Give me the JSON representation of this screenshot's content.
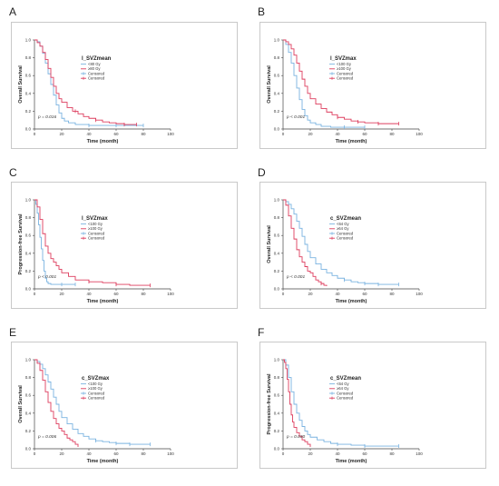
{
  "figure": {
    "panel_letters": [
      "A",
      "B",
      "C",
      "D",
      "E",
      "F"
    ]
  },
  "colors": {
    "blue": "#7ab3e0",
    "red": "#dd3d5e",
    "frame": "#c9c9c9",
    "axis": "#444444"
  },
  "chart_data": [
    {
      "type": "line",
      "panel": "A",
      "title": "l_SVZmean",
      "xlabel": "Time (month)",
      "ylabel": "Overall Survival",
      "xticks": [
        "0",
        "20",
        "40",
        "60",
        "80",
        "100"
      ],
      "yticks": [
        "0.0",
        "0.2",
        "0.4",
        "0.6",
        "0.8",
        "1.0"
      ],
      "xlim": [
        0,
        100
      ],
      "ylim": [
        0,
        1
      ],
      "legend": [
        "<80 Gy",
        "≥80 Gy",
        "Censored",
        "Censored"
      ],
      "legend_position": "center",
      "annotation": "p = 0.016",
      "series": [
        {
          "name": "<80 Gy",
          "color": "#7ab3e0",
          "x": [
            0,
            2,
            4,
            6,
            8,
            10,
            12,
            14,
            16,
            18,
            20,
            22,
            25,
            30,
            40,
            50,
            60,
            70,
            80
          ],
          "y": [
            1.0,
            0.98,
            0.93,
            0.85,
            0.74,
            0.62,
            0.5,
            0.38,
            0.27,
            0.18,
            0.12,
            0.09,
            0.07,
            0.05,
            0.04,
            0.04,
            0.04,
            0.04,
            0.04
          ],
          "censor_x": [
            40,
            60,
            80
          ]
        },
        {
          "name": "≥80 Gy",
          "color": "#dd3d5e",
          "x": [
            0,
            2,
            4,
            6,
            8,
            10,
            12,
            14,
            16,
            18,
            20,
            24,
            28,
            32,
            36,
            40,
            45,
            50,
            55,
            60,
            66,
            75
          ],
          "y": [
            1.0,
            0.97,
            0.93,
            0.86,
            0.78,
            0.68,
            0.58,
            0.48,
            0.4,
            0.34,
            0.3,
            0.24,
            0.2,
            0.17,
            0.14,
            0.12,
            0.1,
            0.08,
            0.07,
            0.06,
            0.05,
            0.05
          ],
          "censor_x": [
            30,
            45,
            66,
            75
          ]
        }
      ]
    },
    {
      "type": "line",
      "panel": "B",
      "title": "l_SVZmax",
      "xlabel": "Time (month)",
      "ylabel": "Overall Survival",
      "xticks": [
        "0",
        "20",
        "40",
        "60",
        "80",
        "100"
      ],
      "yticks": [
        "0.0",
        "0.2",
        "0.4",
        "0.6",
        "0.8",
        "1.0"
      ],
      "xlim": [
        0,
        100
      ],
      "ylim": [
        0,
        1
      ],
      "legend": [
        "<100 Gy",
        "≥100 Gy",
        "Censored",
        "Censored"
      ],
      "legend_position": "center",
      "annotation": "p < 0.001",
      "series": [
        {
          "name": "<100 Gy",
          "color": "#7ab3e0",
          "x": [
            0,
            2,
            4,
            6,
            8,
            10,
            12,
            14,
            16,
            18,
            20,
            24,
            28,
            35,
            45,
            60
          ],
          "y": [
            1.0,
            0.95,
            0.86,
            0.74,
            0.6,
            0.46,
            0.33,
            0.22,
            0.15,
            0.1,
            0.07,
            0.05,
            0.03,
            0.02,
            0.02,
            0.02
          ],
          "censor_x": [
            45,
            60
          ]
        },
        {
          "name": "≥100 Gy",
          "color": "#dd3d5e",
          "x": [
            0,
            2,
            4,
            6,
            8,
            10,
            12,
            14,
            16,
            18,
            20,
            24,
            28,
            32,
            36,
            40,
            45,
            50,
            55,
            60,
            70,
            85
          ],
          "y": [
            1.0,
            0.98,
            0.95,
            0.9,
            0.83,
            0.74,
            0.65,
            0.56,
            0.48,
            0.4,
            0.34,
            0.28,
            0.23,
            0.19,
            0.16,
            0.13,
            0.11,
            0.09,
            0.08,
            0.07,
            0.06,
            0.06
          ],
          "censor_x": [
            40,
            55,
            70,
            85
          ]
        }
      ]
    },
    {
      "type": "line",
      "panel": "C",
      "title": "l_SVZmax",
      "xlabel": "Time (month)",
      "ylabel": "Progression-free Survival",
      "xticks": [
        "0",
        "20",
        "40",
        "60",
        "80",
        "100"
      ],
      "yticks": [
        "0.0",
        "0.2",
        "0.4",
        "0.6",
        "0.8",
        "1.0"
      ],
      "xlim": [
        0,
        100
      ],
      "ylim": [
        0,
        1
      ],
      "legend": [
        "<100 Gy",
        "≥100 Gy",
        "Censored",
        "Censored"
      ],
      "legend_position": "center",
      "annotation": "p < 0.001",
      "series": [
        {
          "name": "<100 Gy",
          "color": "#7ab3e0",
          "x": [
            0,
            1,
            2,
            3,
            4,
            5,
            6,
            7,
            8,
            9,
            10,
            12,
            15,
            20,
            30
          ],
          "y": [
            1.0,
            0.95,
            0.85,
            0.72,
            0.58,
            0.45,
            0.32,
            0.2,
            0.12,
            0.08,
            0.06,
            0.05,
            0.05,
            0.05,
            0.05
          ],
          "censor_x": [
            20,
            30
          ]
        },
        {
          "name": "≥100 Gy",
          "color": "#dd3d5e",
          "x": [
            0,
            2,
            4,
            6,
            8,
            10,
            12,
            14,
            16,
            18,
            20,
            25,
            30,
            40,
            50,
            60,
            70,
            85
          ],
          "y": [
            1.0,
            0.92,
            0.78,
            0.62,
            0.48,
            0.4,
            0.34,
            0.3,
            0.26,
            0.22,
            0.18,
            0.14,
            0.1,
            0.08,
            0.07,
            0.05,
            0.04,
            0.04
          ],
          "censor_x": [
            40,
            60,
            85
          ]
        }
      ]
    },
    {
      "type": "line",
      "panel": "D",
      "title": "c_SVZmean",
      "xlabel": "Time (month)",
      "ylabel": "Overall Survival",
      "xticks": [
        "0",
        "20",
        "40",
        "60",
        "80",
        "100"
      ],
      "yticks": [
        "0.0",
        "0.2",
        "0.4",
        "0.6",
        "0.8",
        "1.0"
      ],
      "xlim": [
        0,
        100
      ],
      "ylim": [
        0,
        1
      ],
      "legend": [
        "<64 Gy",
        "≥64 Gy",
        "Censored",
        "Censored"
      ],
      "legend_position": "center",
      "annotation": "p < 0.001",
      "series": [
        {
          "name": "<64 Gy",
          "color": "#7ab3e0",
          "x": [
            0,
            2,
            4,
            6,
            8,
            10,
            12,
            14,
            16,
            18,
            20,
            24,
            28,
            32,
            36,
            40,
            45,
            50,
            55,
            60,
            70,
            85
          ],
          "y": [
            1.0,
            0.98,
            0.95,
            0.9,
            0.84,
            0.76,
            0.68,
            0.59,
            0.5,
            0.42,
            0.35,
            0.28,
            0.22,
            0.18,
            0.15,
            0.12,
            0.1,
            0.08,
            0.07,
            0.06,
            0.05,
            0.05
          ],
          "censor_x": [
            45,
            60,
            70,
            85
          ]
        },
        {
          "name": "≥64 Gy",
          "color": "#dd3d5e",
          "x": [
            0,
            2,
            4,
            6,
            8,
            10,
            12,
            14,
            16,
            18,
            20,
            22,
            24,
            26,
            28,
            30,
            32
          ],
          "y": [
            1.0,
            0.94,
            0.82,
            0.68,
            0.56,
            0.44,
            0.36,
            0.3,
            0.25,
            0.2,
            0.18,
            0.14,
            0.1,
            0.08,
            0.06,
            0.04,
            0.03
          ],
          "censor_x": [
            28
          ]
        }
      ]
    },
    {
      "type": "line",
      "panel": "E",
      "title": "c_SVZmax",
      "xlabel": "Time (month)",
      "ylabel": "Overall Survival",
      "xticks": [
        "0",
        "20",
        "40",
        "60",
        "80",
        "100"
      ],
      "yticks": [
        "0.0",
        "0.2",
        "0.4",
        "0.6",
        "0.8",
        "1.0"
      ],
      "xlim": [
        0,
        100
      ],
      "ylim": [
        0,
        1
      ],
      "legend": [
        "<100 Gy",
        "≥100 Gy",
        "Censored",
        "Censored"
      ],
      "legend_position": "center",
      "annotation": "p = 0.006",
      "series": [
        {
          "name": "<100 Gy",
          "color": "#7ab3e0",
          "x": [
            0,
            2,
            4,
            6,
            8,
            10,
            12,
            14,
            16,
            18,
            20,
            24,
            28,
            32,
            36,
            40,
            45,
            50,
            55,
            60,
            70,
            85
          ],
          "y": [
            1.0,
            0.98,
            0.95,
            0.9,
            0.83,
            0.75,
            0.67,
            0.58,
            0.5,
            0.42,
            0.35,
            0.28,
            0.22,
            0.17,
            0.14,
            0.11,
            0.09,
            0.08,
            0.07,
            0.06,
            0.05,
            0.05
          ],
          "censor_x": [
            45,
            60,
            70,
            85
          ]
        },
        {
          "name": "≥100 Gy",
          "color": "#dd3d5e",
          "x": [
            0,
            2,
            4,
            6,
            8,
            10,
            12,
            14,
            16,
            18,
            20,
            22,
            24,
            26,
            28,
            30,
            32
          ],
          "y": [
            1.0,
            0.96,
            0.88,
            0.77,
            0.64,
            0.52,
            0.42,
            0.34,
            0.28,
            0.23,
            0.2,
            0.16,
            0.12,
            0.1,
            0.08,
            0.05,
            0.02
          ],
          "censor_x": []
        }
      ]
    },
    {
      "type": "line",
      "panel": "F",
      "title": "c_SVZmean",
      "xlabel": "Time (month)",
      "ylabel": "Progression-free Survival",
      "xticks": [
        "0",
        "20",
        "40",
        "60",
        "80",
        "100"
      ],
      "yticks": [
        "0.0",
        "0.2",
        "0.4",
        "0.6",
        "0.8",
        "1.0"
      ],
      "xlim": [
        0,
        100
      ],
      "ylim": [
        0,
        1
      ],
      "legend": [
        "<64 Gy",
        "≥64 Gy",
        "Censored",
        "Censored"
      ],
      "legend_position": "center",
      "annotation": "p = 0.030",
      "series": [
        {
          "name": "<64 Gy",
          "color": "#7ab3e0",
          "x": [
            0,
            2,
            4,
            6,
            8,
            10,
            12,
            14,
            16,
            18,
            20,
            25,
            30,
            35,
            40,
            50,
            60,
            70,
            85
          ],
          "y": [
            1.0,
            0.94,
            0.8,
            0.64,
            0.5,
            0.4,
            0.32,
            0.25,
            0.2,
            0.16,
            0.13,
            0.1,
            0.08,
            0.06,
            0.05,
            0.04,
            0.03,
            0.03,
            0.03
          ],
          "censor_x": [
            40,
            60,
            85
          ]
        },
        {
          "name": "≥64 Gy",
          "color": "#dd3d5e",
          "x": [
            0,
            1,
            2,
            3,
            4,
            5,
            6,
            7,
            8,
            10,
            12,
            14,
            16,
            18,
            20
          ],
          "y": [
            1.0,
            0.97,
            0.9,
            0.78,
            0.64,
            0.5,
            0.38,
            0.3,
            0.24,
            0.18,
            0.14,
            0.1,
            0.08,
            0.05,
            0.02
          ],
          "censor_x": []
        }
      ]
    }
  ]
}
